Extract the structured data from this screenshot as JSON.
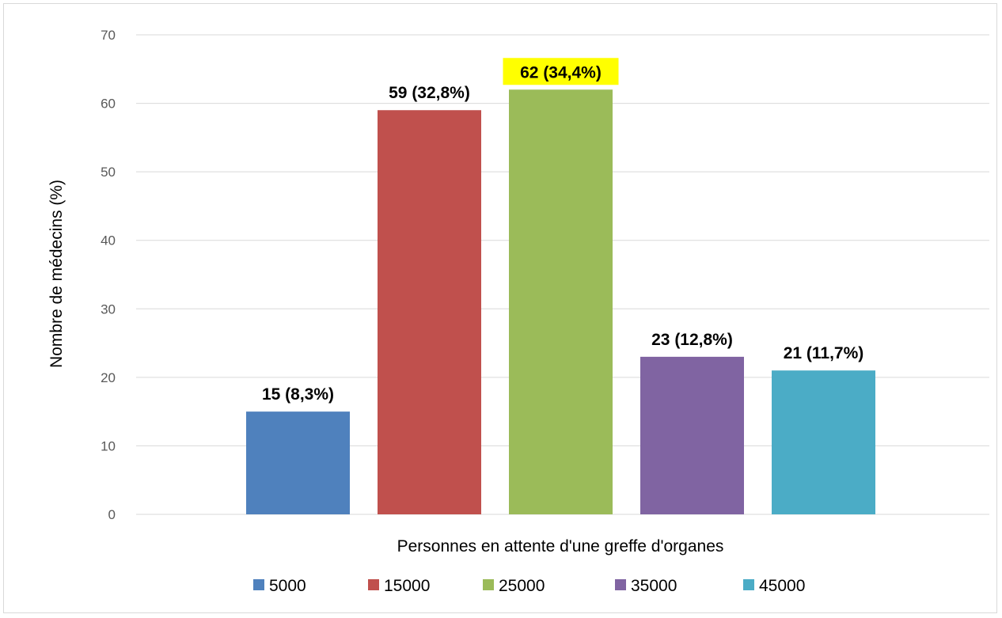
{
  "chart_data": {
    "type": "bar",
    "xlabel": "Personnes en attente d'une greffe d'organes",
    "ylabel": "Nombre de médecins (%)",
    "ylim": [
      0,
      70
    ],
    "yticks": [
      0,
      10,
      20,
      30,
      40,
      50,
      60,
      70
    ],
    "grid": true,
    "legend_position": "bottom",
    "series": [
      {
        "name": "5000",
        "value": 15,
        "label": "15 (8,3%)",
        "color": "#4f81bd",
        "highlight": false
      },
      {
        "name": "15000",
        "value": 59,
        "label": "59 (32,8%)",
        "color": "#c0504d",
        "highlight": false
      },
      {
        "name": "25000",
        "value": 62,
        "label": "62 (34,4%)",
        "color": "#9bbb59",
        "highlight": true
      },
      {
        "name": "35000",
        "value": 23,
        "label": "23 (12,8%)",
        "color": "#8064a2",
        "highlight": false
      },
      {
        "name": "45000",
        "value": 21,
        "label": "21 (11,7%)",
        "color": "#4bacc6",
        "highlight": false
      }
    ],
    "highlight_color": "#ffff00"
  }
}
